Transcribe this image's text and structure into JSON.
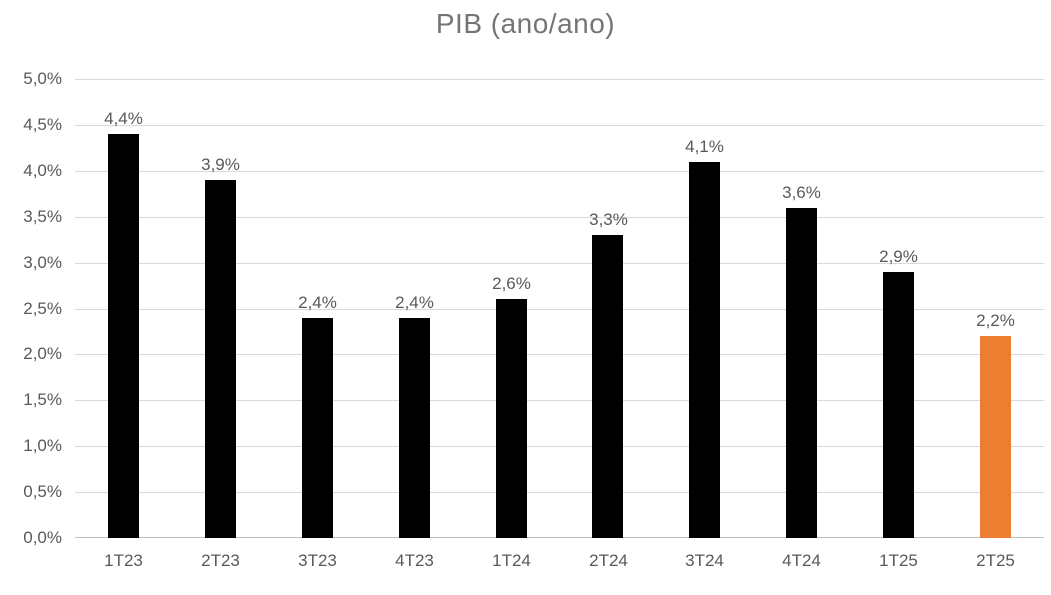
{
  "chart_data": {
    "type": "bar",
    "title": "PIB (ano/ano)",
    "categories": [
      "1T23",
      "2T23",
      "3T23",
      "4T23",
      "1T24",
      "2T24",
      "3T24",
      "4T24",
      "1T25",
      "2T25"
    ],
    "values": [
      4.4,
      3.9,
      2.4,
      2.4,
      2.6,
      3.3,
      4.1,
      3.6,
      2.9,
      2.2
    ],
    "data_labels": [
      "4,4%",
      "3,9%",
      "2,4%",
      "2,4%",
      "2,6%",
      "3,3%",
      "4,1%",
      "3,6%",
      "2,9%",
      "2,2%"
    ],
    "ytick_labels": [
      "0,0%",
      "0,5%",
      "1,0%",
      "1,5%",
      "2,0%",
      "2,5%",
      "3,0%",
      "3,5%",
      "4,0%",
      "4,5%",
      "5,0%"
    ],
    "ylim": [
      0,
      5
    ],
    "ytick_step": 0.5,
    "grid": true,
    "legend": "none",
    "bar_color_default": "#000000",
    "bar_color_highlight": "#ED7D31",
    "highlight_index": 9,
    "gridline_color": "#D9D9D9",
    "axis_line_color": "#BFBFBF",
    "tick_label_color": "#595959",
    "data_label_color": "#595959",
    "title_color": "#757575"
  }
}
